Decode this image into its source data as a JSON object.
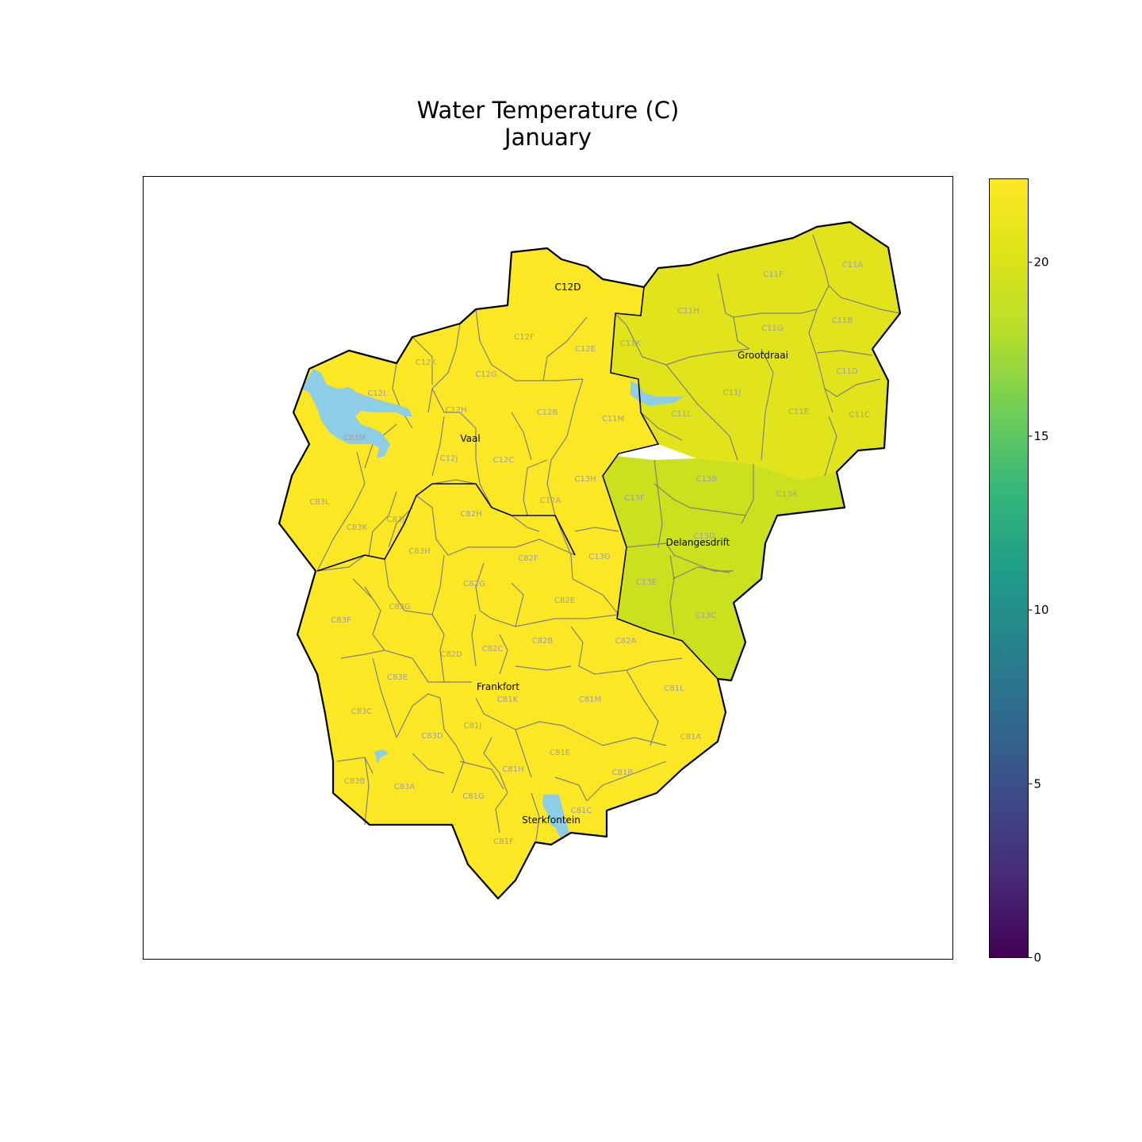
{
  "title_line1": "Water Temperature (C)",
  "title_line2": "January",
  "colors": {
    "dam_water": "#8ecde6",
    "outline": "#000000",
    "region_border": "#808080",
    "region_label": "#a0a0a0",
    "frame": "#000000"
  },
  "colorbar": {
    "colormap": "viridis",
    "min": 0,
    "max": 22.4,
    "ticks": [
      {
        "value": 0,
        "label": "0"
      },
      {
        "value": 5,
        "label": "5"
      },
      {
        "value": 10,
        "label": "10"
      },
      {
        "value": 15,
        "label": "15"
      },
      {
        "value": 20,
        "label": "20"
      }
    ]
  },
  "zones": [
    {
      "name": "main",
      "value": 22.2
    },
    {
      "name": "northeast",
      "value": 21.4
    },
    {
      "name": "east",
      "value": 20.4
    }
  ],
  "places": [
    {
      "name": "C12D"
    },
    {
      "name": "Grootdraai"
    },
    {
      "name": "Vaal"
    },
    {
      "name": "Delangesdrift"
    },
    {
      "name": "Frankfort"
    },
    {
      "name": "Sterkfontein"
    }
  ],
  "regions": [
    {
      "code": "C11A",
      "zone": "northeast"
    },
    {
      "code": "C11F",
      "zone": "northeast"
    },
    {
      "code": "C11H",
      "zone": "northeast"
    },
    {
      "code": "C11G",
      "zone": "northeast"
    },
    {
      "code": "C11B",
      "zone": "northeast"
    },
    {
      "code": "C11K",
      "zone": "northeast"
    },
    {
      "code": "C11D",
      "zone": "northeast"
    },
    {
      "code": "C11J",
      "zone": "northeast"
    },
    {
      "code": "C11E",
      "zone": "northeast"
    },
    {
      "code": "C11C",
      "zone": "northeast"
    },
    {
      "code": "C11L",
      "zone": "northeast"
    },
    {
      "code": "C13B",
      "zone": "east"
    },
    {
      "code": "C13A",
      "zone": "east"
    },
    {
      "code": "C13F",
      "zone": "east"
    },
    {
      "code": "C13D",
      "zone": "east"
    },
    {
      "code": "C13E",
      "zone": "east"
    },
    {
      "code": "C13C",
      "zone": "east"
    },
    {
      "code": "C12F",
      "zone": "main"
    },
    {
      "code": "C12E",
      "zone": "main"
    },
    {
      "code": "C12K",
      "zone": "main"
    },
    {
      "code": "C12G",
      "zone": "main"
    },
    {
      "code": "C12L",
      "zone": "main"
    },
    {
      "code": "C12H",
      "zone": "main"
    },
    {
      "code": "C12B",
      "zone": "main"
    },
    {
      "code": "C11M",
      "zone": "main"
    },
    {
      "code": "C83M",
      "zone": "main"
    },
    {
      "code": "C12J",
      "zone": "main"
    },
    {
      "code": "C12C",
      "zone": "main"
    },
    {
      "code": "C13H",
      "zone": "main"
    },
    {
      "code": "C83L",
      "zone": "main"
    },
    {
      "code": "C12A",
      "zone": "main"
    },
    {
      "code": "C82H",
      "zone": "main"
    },
    {
      "code": "C83K",
      "zone": "main"
    },
    {
      "code": "C83J",
      "zone": "main"
    },
    {
      "code": "C83H",
      "zone": "main"
    },
    {
      "code": "C13G",
      "zone": "main"
    },
    {
      "code": "C82F",
      "zone": "main"
    },
    {
      "code": "C82G",
      "zone": "main"
    },
    {
      "code": "C82E",
      "zone": "main"
    },
    {
      "code": "C83G",
      "zone": "main"
    },
    {
      "code": "C83F",
      "zone": "main"
    },
    {
      "code": "C82B",
      "zone": "main"
    },
    {
      "code": "C82A",
      "zone": "main"
    },
    {
      "code": "C82D",
      "zone": "main"
    },
    {
      "code": "C82C",
      "zone": "main"
    },
    {
      "code": "C83E",
      "zone": "main"
    },
    {
      "code": "C81L",
      "zone": "main"
    },
    {
      "code": "C81K",
      "zone": "main"
    },
    {
      "code": "C81M",
      "zone": "main"
    },
    {
      "code": "C83C",
      "zone": "main"
    },
    {
      "code": "C81J",
      "zone": "main"
    },
    {
      "code": "C83D",
      "zone": "main"
    },
    {
      "code": "C81A",
      "zone": "main"
    },
    {
      "code": "C81E",
      "zone": "main"
    },
    {
      "code": "C81H",
      "zone": "main"
    },
    {
      "code": "C81B",
      "zone": "main"
    },
    {
      "code": "C83B",
      "zone": "main"
    },
    {
      "code": "C83A",
      "zone": "main"
    },
    {
      "code": "C81G",
      "zone": "main"
    },
    {
      "code": "C81C",
      "zone": "main"
    },
    {
      "code": "C81F",
      "zone": "main"
    }
  ]
}
